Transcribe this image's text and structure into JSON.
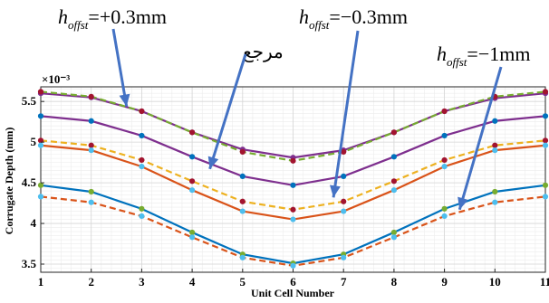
{
  "chart_data": {
    "type": "line",
    "xlabel": "Unit Cell Number",
    "ylabel": "Corrugate Depth (mm)",
    "y_exponent_label": "×10⁻³",
    "x": [
      1,
      2,
      3,
      4,
      5,
      6,
      7,
      8,
      9,
      10,
      11
    ],
    "x_tick_labels": [
      "1",
      "2",
      "3",
      "4",
      "5",
      "6",
      "7",
      "8",
      "9",
      "10",
      "11"
    ],
    "y_tick_labels": [
      "3.5",
      "4",
      "4.5",
      "5",
      "5.5"
    ],
    "y_ticks": [
      3.5,
      4.0,
      4.5,
      5.0,
      5.5
    ],
    "xlim": [
      1,
      11
    ],
    "ylim": [
      3.4,
      5.68
    ],
    "grid": "on (major and minor)",
    "series": [
      {
        "color": "#7E2F8E",
        "dash": false,
        "marker_color": "#7E2F8E",
        "values": [
          5.6,
          5.55,
          5.38,
          5.12,
          4.91,
          4.81,
          4.9,
          5.12,
          5.38,
          5.54,
          5.6
        ]
      },
      {
        "color": "#77AC30",
        "dash": true,
        "marker_color": "#A2142F",
        "values": [
          5.62,
          5.56,
          5.38,
          5.12,
          4.88,
          4.77,
          4.88,
          5.12,
          5.38,
          5.56,
          5.62
        ]
      },
      {
        "color": "#7E2F8E",
        "dash": false,
        "marker_color": "#0072BD",
        "values": [
          5.32,
          5.26,
          5.08,
          4.82,
          4.58,
          4.47,
          4.58,
          4.82,
          5.08,
          5.26,
          5.32
        ]
      },
      {
        "color": "#EDB120",
        "dash": true,
        "marker_color": "#A2142F",
        "values": [
          5.02,
          4.96,
          4.78,
          4.52,
          4.27,
          4.17,
          4.27,
          4.52,
          4.78,
          4.96,
          5.02
        ]
      },
      {
        "color": "#D95319",
        "dash": false,
        "marker_color": "#4DBEEE",
        "values": [
          4.96,
          4.9,
          4.7,
          4.41,
          4.15,
          4.05,
          4.15,
          4.41,
          4.7,
          4.9,
          4.96
        ]
      },
      {
        "color": "#0072BD",
        "dash": false,
        "marker_color": "#77AC30",
        "values": [
          4.47,
          4.39,
          4.18,
          3.89,
          3.62,
          3.51,
          3.62,
          3.89,
          4.18,
          4.39,
          4.47
        ]
      },
      {
        "color": "#D95319",
        "dash": true,
        "marker_color": "#4DBEEE",
        "values": [
          4.33,
          4.26,
          4.09,
          3.83,
          3.58,
          3.48,
          3.58,
          3.83,
          4.09,
          4.26,
          4.33
        ]
      }
    ],
    "annotations": [
      {
        "base": "h",
        "subscript": "offst",
        "rest": "=+0.3mm"
      },
      {
        "base": "h",
        "subscript": "offst",
        "rest": "=−0.3mm"
      },
      {
        "base": "h",
        "subscript": "offst",
        "rest": "=−1mm"
      },
      {
        "text": "مرجع"
      }
    ],
    "arrow_color": "#4472C4"
  }
}
